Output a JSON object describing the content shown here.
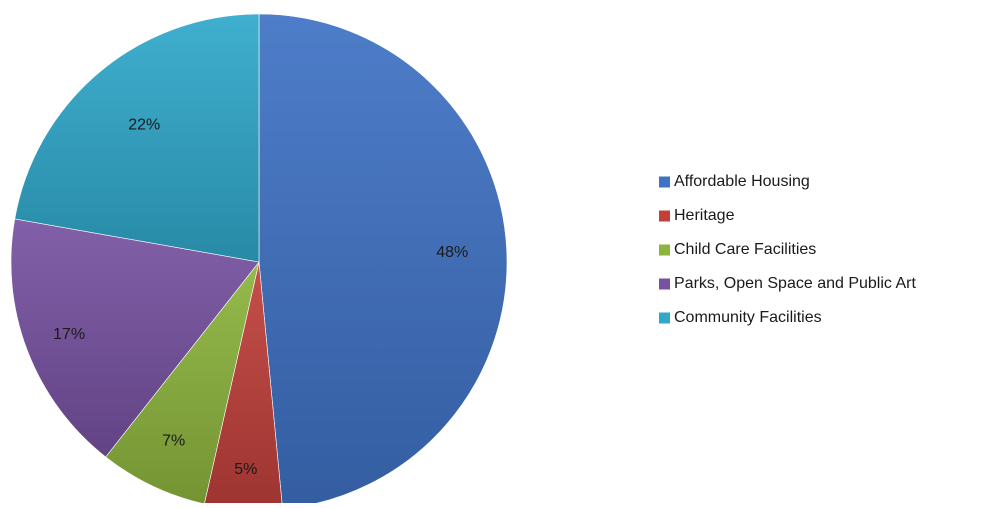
{
  "chart_data": {
    "type": "pie",
    "title": "",
    "categories": [
      "Affordable Housing",
      "Heritage",
      "Child Care Facilities",
      "Parks, Open Space and Public Art",
      "Community Facilities"
    ],
    "values": [
      48,
      5,
      7,
      17,
      22
    ],
    "data_labels": [
      "48%",
      "5%",
      "7%",
      "17%",
      "22%"
    ],
    "colors": [
      "#3f72c4",
      "#c0403a",
      "#8db43d",
      "#7752a1",
      "#2fa8cb"
    ],
    "legend_position": "right",
    "start_angle": "12 o'clock",
    "direction": "clockwise"
  }
}
